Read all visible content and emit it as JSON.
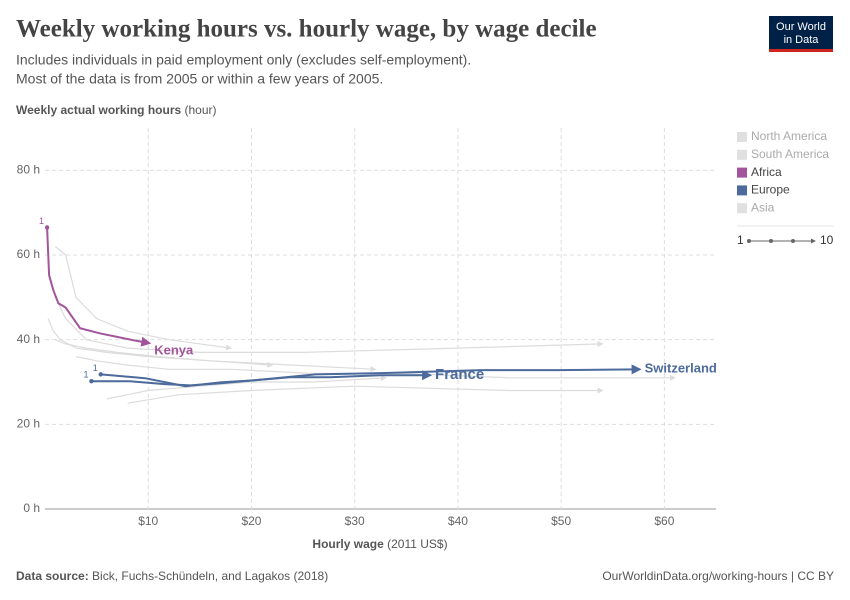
{
  "chart_data": {
    "type": "line",
    "title": "Weekly working hours vs. hourly wage, by wage decile",
    "subtitle": [
      "Includes individuals in paid employment only (excludes self-employment).",
      "Most of the data is from 2005 or within a few years of 2005."
    ],
    "y_label": "Weekly actual working hours",
    "y_unit": "(hour)",
    "x_label": "Hourly wage",
    "x_unit": "(2011 US$)",
    "source_label": "Data source:",
    "source": "Bick, Fuchs-Schündeln, and Lagakos (2018)",
    "url": "OurWorldinData.org/working-hours | CC BY",
    "logo": [
      "Our World",
      "in Data"
    ],
    "xlim": [
      0,
      65
    ],
    "ylim": [
      0,
      90
    ],
    "xticks": [
      {
        "value": 10,
        "label": "$10"
      },
      {
        "value": 20,
        "label": "$20"
      },
      {
        "value": 30,
        "label": "$30"
      },
      {
        "value": 40,
        "label": "$40"
      },
      {
        "value": 50,
        "label": "$50"
      },
      {
        "value": 60,
        "label": "$60"
      }
    ],
    "yticks": [
      {
        "value": 0,
        "label": "0 h"
      },
      {
        "value": 20,
        "label": "20 h"
      },
      {
        "value": 40,
        "label": "40 h"
      },
      {
        "value": 60,
        "label": "60 h"
      },
      {
        "value": 80,
        "label": "80 h"
      }
    ],
    "grid": true,
    "legend": [
      {
        "name": "North America",
        "color": "#e0e0e0",
        "active": false
      },
      {
        "name": "South America",
        "color": "#e0e0e0",
        "active": false
      },
      {
        "name": "Africa",
        "color": "#a2559c",
        "active": true
      },
      {
        "name": "Europe",
        "color": "#4c6a9c",
        "active": true
      },
      {
        "name": "Asia",
        "color": "#e0e0e0",
        "active": false
      }
    ],
    "decile_legend": [
      1,
      10
    ],
    "background_series": [
      {
        "color": "#dcdcdc",
        "x": [
          0.5,
          1,
          2,
          4,
          8,
          15,
          25,
          40,
          54
        ],
        "values": [
          55,
          50,
          45,
          40,
          38,
          37,
          37,
          38,
          39
        ]
      },
      {
        "color": "#dcdcdc",
        "x": [
          1,
          2,
          3,
          5,
          8,
          12,
          18
        ],
        "values": [
          62,
          60,
          50,
          45,
          42,
          40,
          38
        ]
      },
      {
        "color": "#dcdcdc",
        "x": [
          0.3,
          0.8,
          1.5,
          3,
          6,
          10,
          16,
          24,
          32
        ],
        "values": [
          45,
          42,
          40,
          38,
          37,
          36,
          35,
          34,
          33
        ]
      },
      {
        "color": "#dcdcdc",
        "x": [
          3,
          5,
          8,
          12,
          18,
          26,
          35,
          45,
          61
        ],
        "values": [
          36,
          35,
          34,
          33,
          33,
          32,
          32,
          31,
          31
        ]
      },
      {
        "color": "#dcdcdc",
        "x": [
          6,
          10,
          15,
          20,
          26,
          33
        ],
        "values": [
          26,
          28,
          29,
          30,
          30,
          31
        ]
      },
      {
        "color": "#dcdcdc",
        "x": [
          1,
          2,
          4,
          7,
          11,
          16,
          22
        ],
        "values": [
          40,
          39,
          38,
          37,
          36,
          35,
          34
        ]
      },
      {
        "color": "#dcdcdc",
        "x": [
          8,
          13,
          20,
          30,
          45,
          54
        ],
        "values": [
          25,
          27,
          28,
          29,
          28,
          28
        ]
      }
    ],
    "series": [
      {
        "name": "Kenya",
        "color": "#a2559c",
        "start_label": 1,
        "x": [
          0.2,
          0.4,
          0.8,
          1.3,
          2.0,
          3.4,
          5.3,
          7.1,
          8.5,
          10.1
        ],
        "values": [
          66.5,
          55.2,
          51.7,
          48.6,
          47.6,
          42.7,
          41.5,
          40.6,
          39.9,
          39.2
        ]
      },
      {
        "name": "France",
        "color": "#4c6a9c",
        "start_label": 1,
        "x": [
          4.5,
          8.2,
          11.6,
          14.1,
          17,
          20.3,
          23.7,
          27.6,
          32.5,
          37.3
        ],
        "values": [
          30.2,
          30.2,
          29.5,
          29.2,
          29.7,
          30.4,
          31.1,
          31.1,
          31.6,
          31.6
        ]
      },
      {
        "name": "Switzerland",
        "color": "#4c6a9c",
        "start_label": 1,
        "x": [
          5.4,
          9.7,
          13.6,
          17,
          20.3,
          26.2,
          32.5,
          42.3,
          49.9,
          57.6
        ],
        "values": [
          31.8,
          30.9,
          29.0,
          29.9,
          30.4,
          31.8,
          32.1,
          32.8,
          32.8,
          33.0
        ]
      }
    ]
  }
}
